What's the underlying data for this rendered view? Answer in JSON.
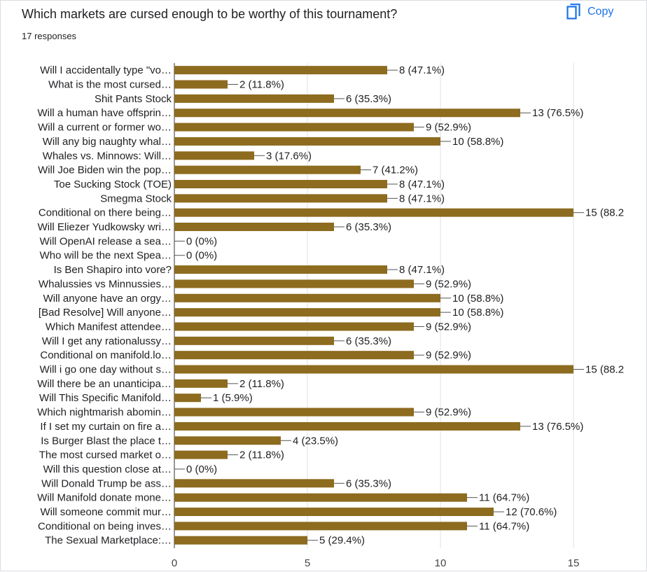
{
  "question": {
    "title": "Which markets are cursed enough to be worthy of this tournament?",
    "responses": "17 responses"
  },
  "toolbar": {
    "copy_label": "Copy",
    "copy_icon": "copy-icon",
    "accent": "#1a73e8"
  },
  "chart_data": {
    "type": "bar",
    "orientation": "horizontal",
    "bar_color": "#8d6b1f",
    "xlim": [
      0,
      15
    ],
    "xticks": [
      0,
      5,
      10,
      15
    ],
    "grid": true,
    "categories": [
      "Will I accidentally type \"vo…",
      "What is the most cursed…",
      "Shit Pants Stock",
      "Will a human have offsprin…",
      "Will a current or former wo…",
      "Will any big naughty whal…",
      "Whales vs. Minnows: Will…",
      "Will Joe Biden win the pop…",
      "Toe Sucking Stock (TOE)",
      "Smegma Stock",
      "Conditional on there being…",
      "Will Eliezer Yudkowsky wri…",
      "Will OpenAI release a sea…",
      "Who will be the next Spea…",
      "Is Ben Shapiro into vore?",
      "Whalussies vs Minnussies…",
      "Will anyone have an orgy…",
      "[Bad Resolve] Will anyone…",
      "Which Manifest attendee…",
      "Will I get any rationalussy…",
      "Conditional on manifold.lo…",
      "Will i go one day without s…",
      "Will there be an unanticipa…",
      "Will This Specific Manifold…",
      "Which nightmarish abomin…",
      "If I set my curtain on fire a…",
      "Is Burger Blast the place t…",
      "The most cursed market o…",
      "Will this question close at…",
      "Will Donald Trump be ass…",
      "Will Manifold donate mone…",
      "Will someone commit mur…",
      "Conditional on being inves…",
      "The Sexual Marketplace:…"
    ],
    "values": [
      8,
      2,
      6,
      13,
      9,
      10,
      3,
      7,
      8,
      8,
      15,
      6,
      0,
      0,
      8,
      9,
      10,
      10,
      9,
      6,
      9,
      15,
      2,
      1,
      9,
      13,
      4,
      2,
      0,
      6,
      11,
      12,
      11,
      5
    ],
    "value_labels": [
      "8 (47.1%)",
      "2 (11.8%)",
      "6 (35.3%)",
      "13 (76.5%)",
      "9 (52.9%)",
      "10 (58.8%)",
      "3 (17.6%)",
      "7 (41.2%)",
      "8 (47.1%)",
      "8 (47.1%)",
      "15 (88.2",
      "6 (35.3%)",
      "0 (0%)",
      "0 (0%)",
      "8 (47.1%)",
      "9 (52.9%)",
      "10 (58.8%)",
      "10 (58.8%)",
      "9 (52.9%)",
      "6 (35.3%)",
      "9 (52.9%)",
      "15 (88.2",
      "2 (11.8%)",
      "1 (5.9%)",
      "9 (52.9%)",
      "13 (76.5%)",
      "4 (23.5%)",
      "2 (11.8%)",
      "0 (0%)",
      "6 (35.3%)",
      "11 (64.7%)",
      "12 (70.6%)",
      "11 (64.7%)",
      "5 (29.4%)"
    ]
  }
}
